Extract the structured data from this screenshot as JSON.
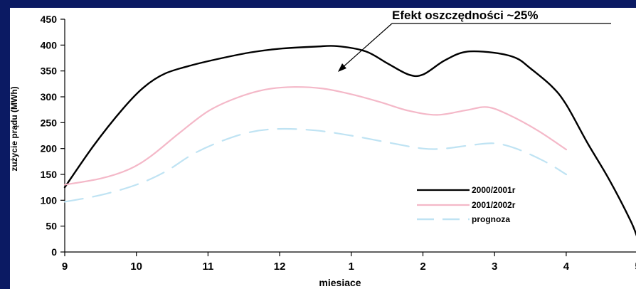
{
  "chart_data": {
    "type": "line",
    "title": "",
    "xlabel": "miesiace",
    "ylabel": "zużycie prądu (MWh)",
    "categories": [
      "9",
      "10",
      "11",
      "12",
      "1",
      "2",
      "3",
      "4",
      "5"
    ],
    "ylim": [
      0,
      450
    ],
    "yticks": [
      "0",
      "50",
      "100",
      "150",
      "200",
      "250",
      "300",
      "350",
      "400",
      "450"
    ],
    "grid": false,
    "legend_position": "lower-right",
    "annotation": "Efekt oszczędności ~25%",
    "series": [
      {
        "name": "2000/2001r",
        "color": "#000000",
        "style": "solid",
        "x": [
          9,
          9.4,
          9.8,
          10.1,
          10.4,
          10.8,
          11.2,
          11.6,
          12.0,
          12.5,
          12.8,
          13.2,
          13.5,
          13.8,
          14.0,
          14.3,
          14.6,
          15.0,
          15.3,
          15.5,
          15.8,
          16.0,
          16.3,
          16.6,
          16.9,
          17.0
        ],
        "values": [
          125,
          205,
          275,
          318,
          345,
          362,
          375,
          386,
          393,
          397,
          398,
          388,
          365,
          343,
          343,
          370,
          387,
          385,
          375,
          355,
          320,
          285,
          210,
          140,
          60,
          25
        ]
      },
      {
        "name": "2001/2002r",
        "color": "#f4b8c8",
        "style": "solid",
        "x": [
          9,
          9.5,
          9.9,
          10.2,
          10.6,
          11.0,
          11.4,
          11.8,
          12.2,
          12.6,
          13.0,
          13.4,
          13.8,
          14.2,
          14.6,
          14.9,
          15.2,
          15.6,
          16.0
        ],
        "values": [
          130,
          142,
          160,
          185,
          230,
          272,
          298,
          314,
          319,
          316,
          305,
          290,
          273,
          265,
          274,
          280,
          265,
          235,
          198
        ]
      },
      {
        "name": "prognoza",
        "color": "#bfe3f3",
        "style": "dashed",
        "x": [
          9,
          9.5,
          10.0,
          10.4,
          10.8,
          11.2,
          11.6,
          12.0,
          12.5,
          13.0,
          13.5,
          14.0,
          14.3,
          14.7,
          15.0,
          15.3,
          15.7,
          16.0
        ],
        "values": [
          97,
          110,
          130,
          155,
          190,
          215,
          232,
          238,
          235,
          225,
          212,
          200,
          200,
          207,
          210,
          200,
          175,
          150
        ]
      }
    ]
  }
}
